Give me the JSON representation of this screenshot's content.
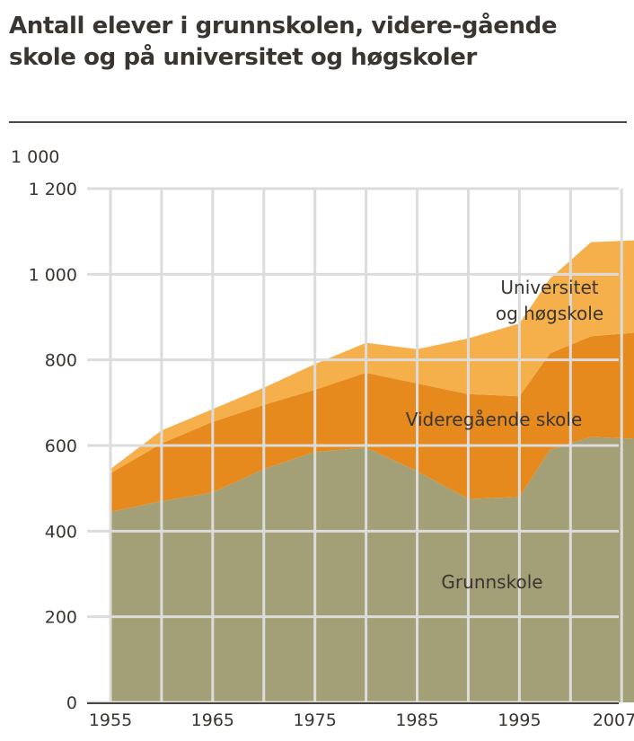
{
  "title": "Antall elever i grunnskolen, videre-gående skole og på universitet og høgskoler",
  "chart_data": {
    "type": "area",
    "stacked": true,
    "title": "Antall elever i grunnskolen, videre-gående skole og på universitet og høgskoler",
    "unit": "1 000",
    "x": [
      1955,
      1960,
      1965,
      1970,
      1975,
      1980,
      1985,
      1990,
      1995,
      1998,
      2002,
      2007
    ],
    "xticks": [
      "1955",
      "1965",
      "1975",
      "1985",
      "1995",
      "2007"
    ],
    "yticks": [
      "0",
      "200",
      "400",
      "600",
      "800",
      "1 000",
      "1 200"
    ],
    "ylim": [
      0,
      1200
    ],
    "grid": true,
    "series": [
      {
        "name": "Grunnskole",
        "color": "#a3a078",
        "values": [
          445,
          470,
          490,
          545,
          585,
          595,
          540,
          475,
          480,
          590,
          620,
          615
        ]
      },
      {
        "name": "Videregående skole",
        "color": "#e68a1e",
        "values": [
          90,
          135,
          165,
          150,
          145,
          175,
          205,
          245,
          235,
          225,
          235,
          250
        ]
      },
      {
        "name": "Universitet og høgskole",
        "color": "#f5b04c",
        "values": [
          10,
          30,
          30,
          40,
          60,
          70,
          80,
          130,
          170,
          175,
          220,
          215
        ]
      }
    ],
    "labels": {
      "s2_line1": "Universitet",
      "s2_line2": "og høgskole",
      "s1": "Videregående skole",
      "s0": "Grunnskole"
    }
  }
}
